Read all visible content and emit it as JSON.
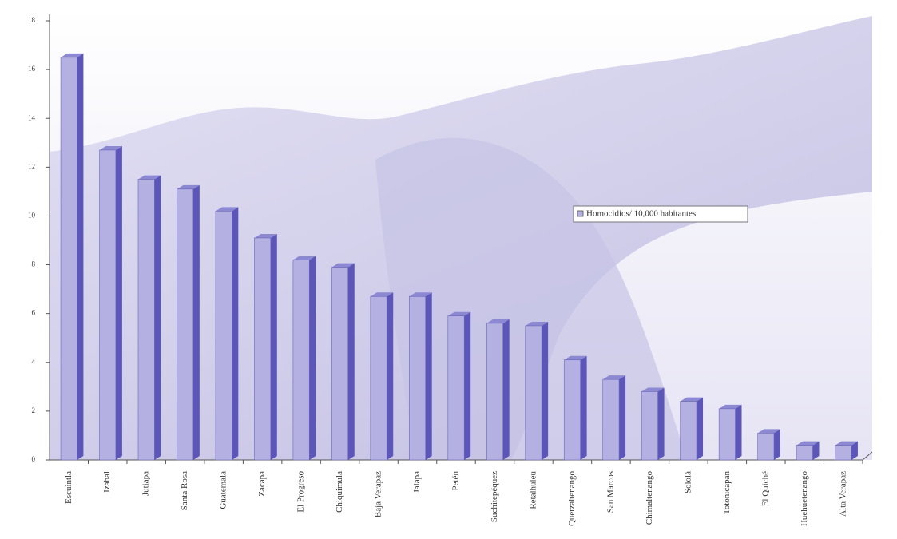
{
  "chart_data": {
    "type": "bar",
    "categories": [
      "Escuintla",
      "Izabal",
      "Jutiapa",
      "Santa Rosa",
      "Guatemala",
      "Zacapa",
      "El Progreso",
      "Chiquimula",
      "Baja Verapaz",
      "Jalapa",
      "Petén",
      "Suchitepéquez",
      "Retalhuleu",
      "Quetzaltenango",
      "San Marcos",
      "Chimaltenango",
      "Sololá",
      "Totonicapán",
      "El Quiché",
      "Huehuetenango",
      "Alta Verapaz"
    ],
    "series": [
      {
        "name": "Homocidios/ 10,000 habitantes",
        "color": "#b4b0e2",
        "values": [
          16.5,
          12.7,
          11.5,
          11.1,
          10.2,
          9.1,
          8.2,
          7.9,
          6.7,
          6.7,
          5.9,
          5.6,
          5.5,
          4.1,
          3.3,
          2.8,
          2.4,
          2.1,
          1.1,
          0.6,
          0.6
        ]
      }
    ],
    "ylim": [
      0,
      18
    ],
    "yticks": [
      0,
      2,
      4,
      6,
      8,
      10,
      12,
      14,
      16,
      18
    ],
    "legend": "right"
  }
}
